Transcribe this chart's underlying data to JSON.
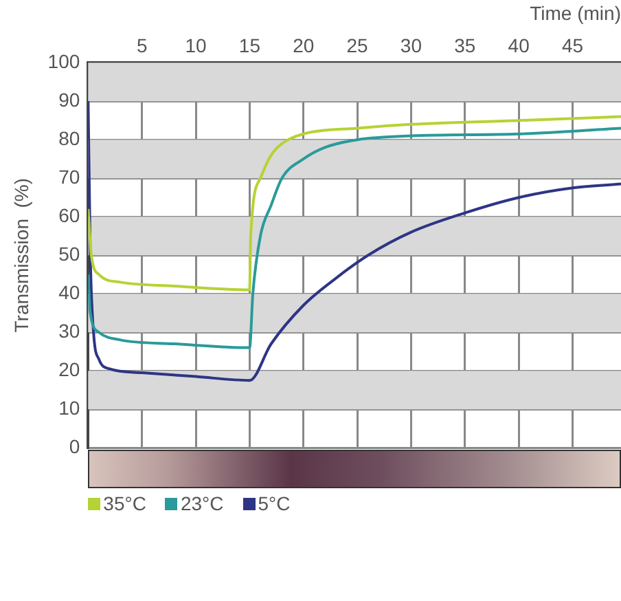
{
  "chart_data": {
    "type": "line",
    "xlabel": "Time (min)",
    "ylabel": "Transmission  (%)",
    "xlim": [
      0,
      49.5
    ],
    "xticks": [
      5,
      10,
      15,
      20,
      25,
      30,
      35,
      40,
      45
    ],
    "ylim": [
      0,
      100
    ],
    "yticks": [
      0,
      10,
      20,
      30,
      40,
      50,
      60,
      70,
      80,
      90,
      100
    ],
    "grid": true,
    "legend": "bottom left",
    "marker": "none",
    "line_style": "solid",
    "series": [
      {
        "name": "35°C",
        "color": "#b5d334",
        "x": [
          0,
          0.3,
          1,
          3,
          8,
          15,
          15.1,
          16,
          17,
          18,
          20,
          25,
          30,
          40,
          49.5
        ],
        "values": [
          62,
          50,
          45,
          43,
          42,
          41,
          55,
          70,
          76,
          79,
          81.5,
          83,
          84,
          85,
          86
        ]
      },
      {
        "name": "23°C",
        "color": "#2a9a9a",
        "x": [
          0,
          0.2,
          1,
          3,
          8,
          15,
          15.3,
          16,
          17,
          18,
          20,
          22,
          25,
          30,
          40,
          49.5
        ],
        "values": [
          45,
          35,
          30,
          28,
          27,
          26,
          40,
          55,
          63,
          70,
          75,
          78,
          80,
          81,
          81.5,
          83
        ]
      },
      {
        "name": "5°C",
        "color": "#2e3585",
        "x": [
          0,
          0.2,
          0.5,
          1,
          2,
          5,
          10,
          15,
          17,
          20,
          23,
          26,
          30,
          35,
          40,
          45,
          49.5
        ],
        "values": [
          90,
          50,
          30,
          23,
          20.5,
          19.5,
          18.5,
          17.5,
          27,
          37,
          44,
          50,
          56,
          61,
          65,
          67.5,
          68.5
        ]
      }
    ]
  }
}
